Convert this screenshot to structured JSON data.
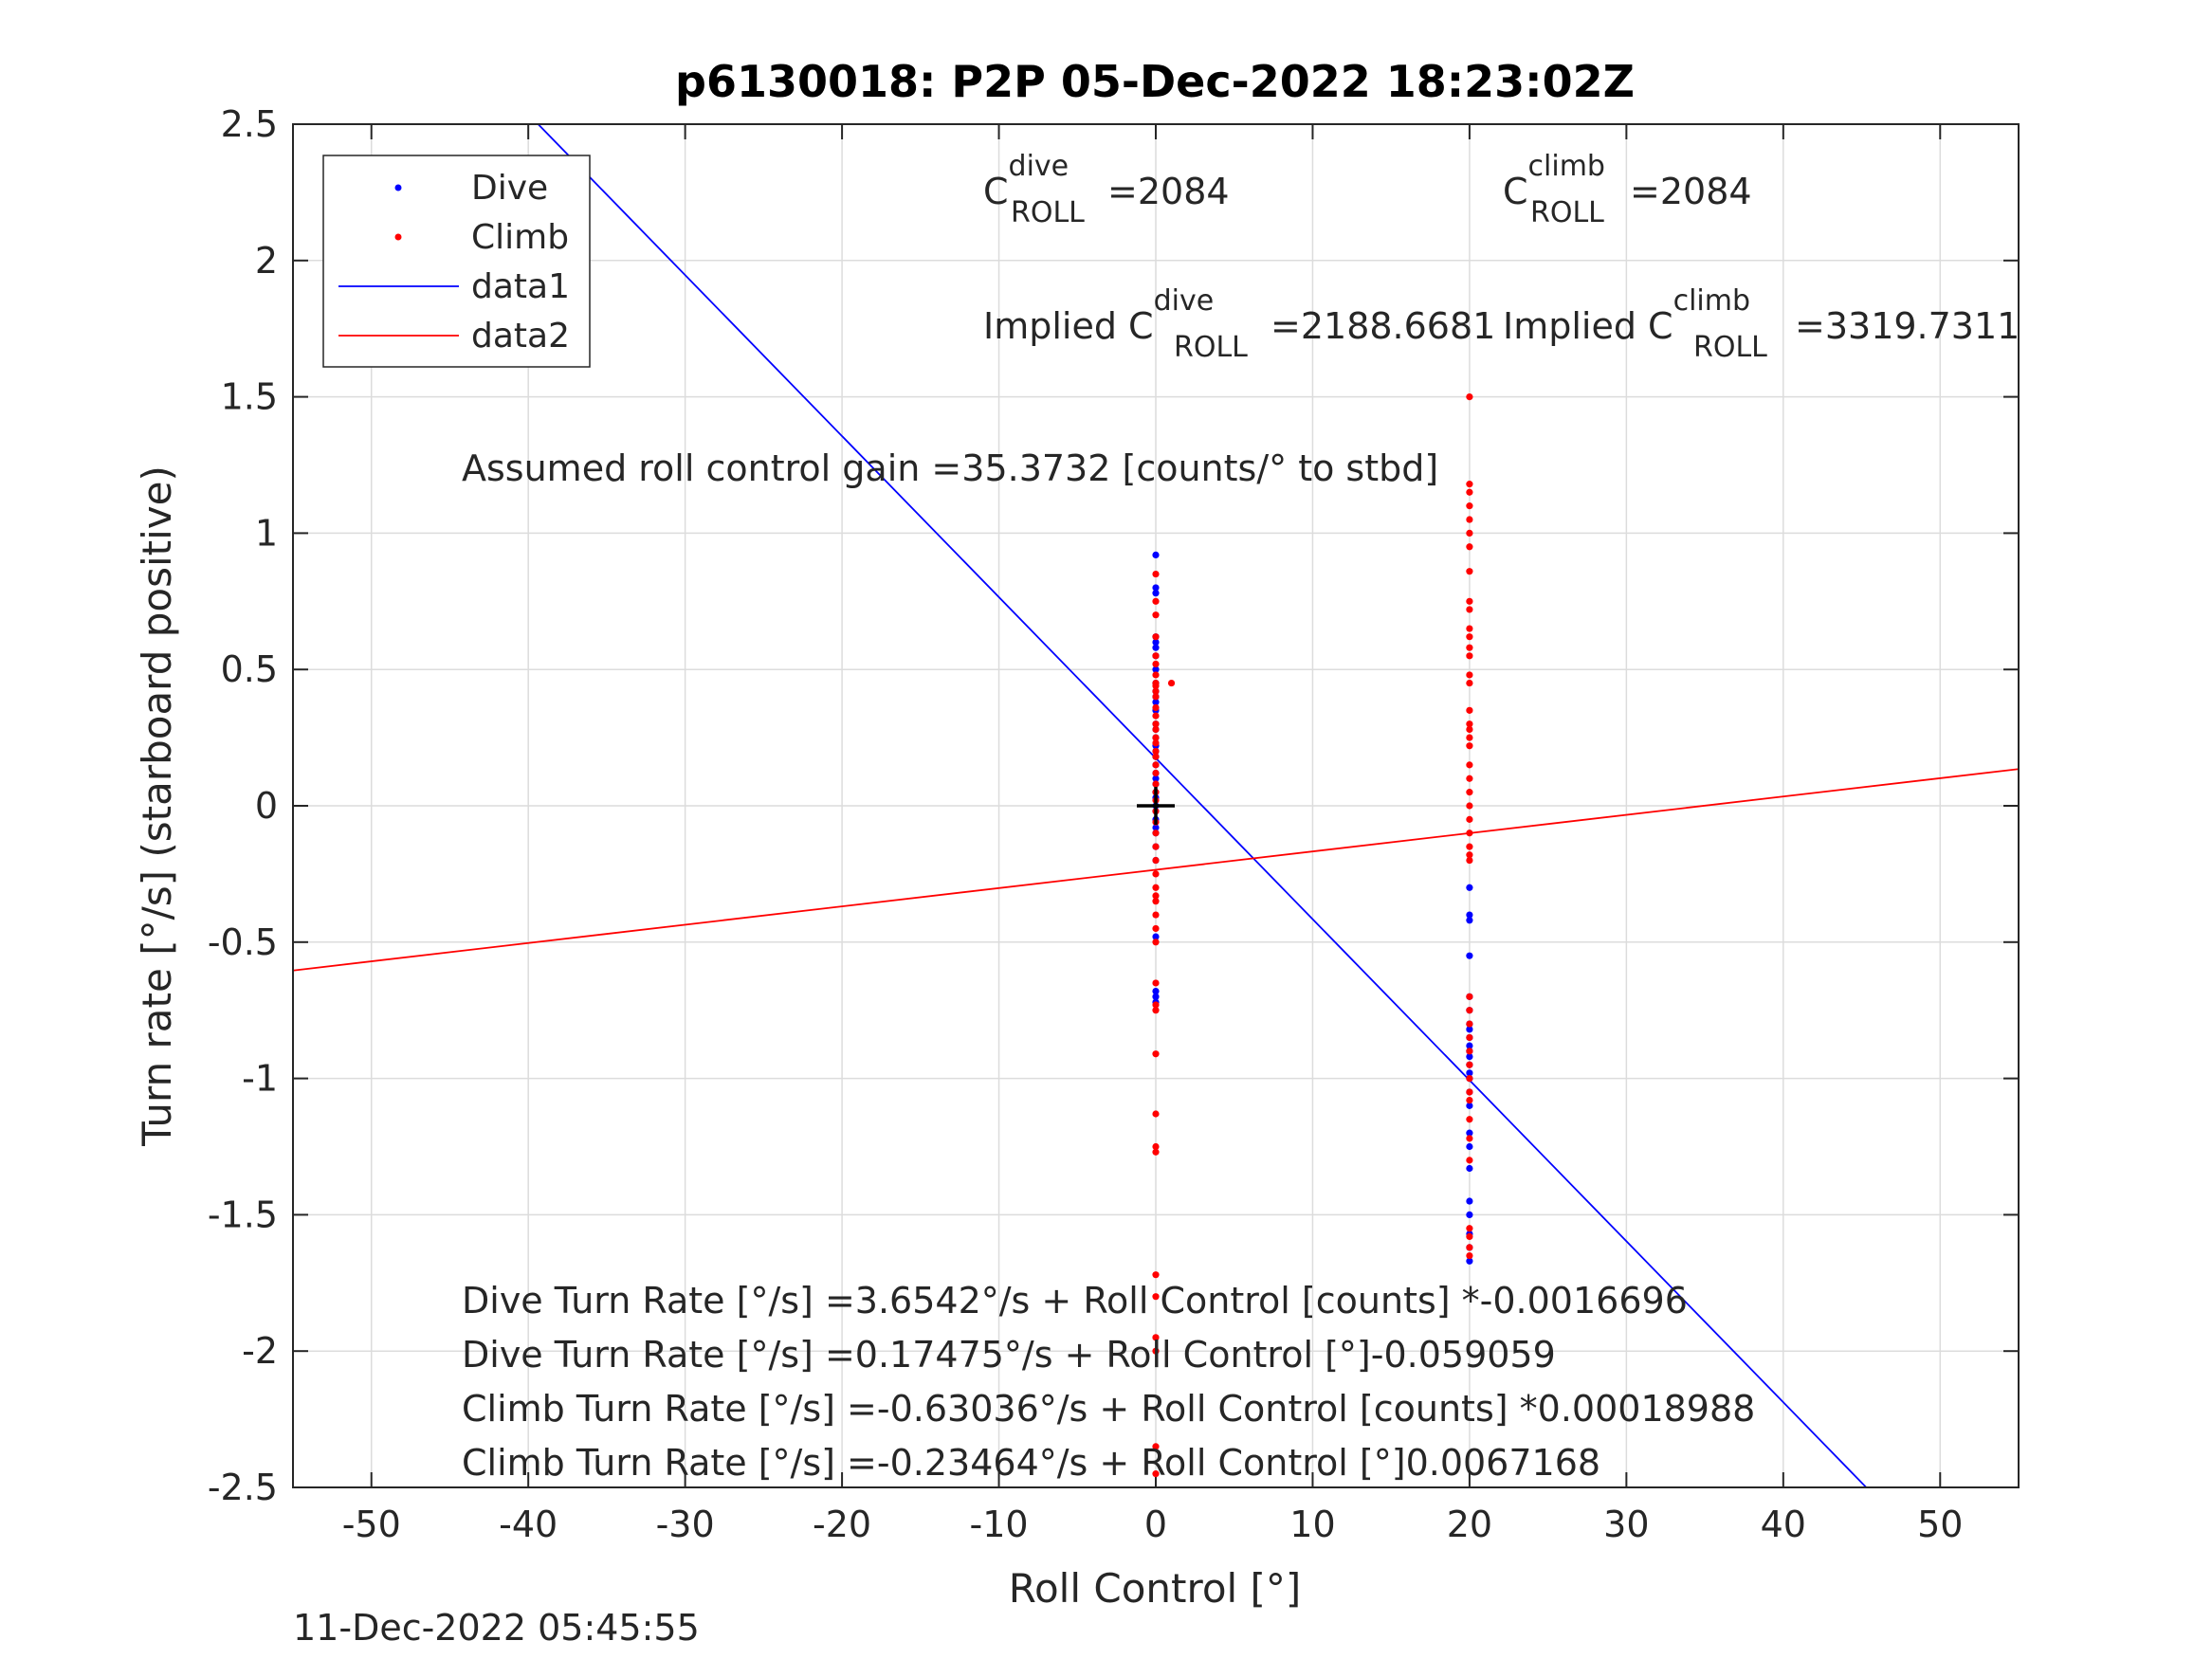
{
  "footer_timestamp": "11-Dec-2022 05:45:55",
  "chart_data": {
    "type": "scatter",
    "title": "p6130018: P2P 05-Dec-2022 18:23:02Z",
    "xlabel": "Roll Control [°]",
    "ylabel": "Turn rate [°/s] (starboard positive)",
    "xlim": [
      -55,
      55
    ],
    "ylim": [
      -2.5,
      2.5
    ],
    "xticks": [
      -50,
      -40,
      -30,
      -20,
      -10,
      0,
      10,
      20,
      30,
      40,
      50
    ],
    "yticks": [
      -2.5,
      -2,
      -1.5,
      -1,
      -0.5,
      0,
      0.5,
      1,
      1.5,
      2,
      2.5
    ],
    "xtick_labels": [
      "-50",
      "-40",
      "-30",
      "-20",
      "-10",
      "0",
      "10",
      "20",
      "30",
      "40",
      "50"
    ],
    "ytick_labels": [
      "-2.5",
      "-2",
      "-1.5",
      "-1",
      "-0.5",
      "0",
      "0.5",
      "1",
      "1.5",
      "2",
      "2.5"
    ],
    "grid": true,
    "legend_position": "top-left",
    "legend": [
      {
        "label": "Dive",
        "kind": "marker",
        "color": "#0000ff"
      },
      {
        "label": "Climb",
        "kind": "marker",
        "color": "#ff0000"
      },
      {
        "label": "data1",
        "kind": "line",
        "color": "#0000ff"
      },
      {
        "label": "data2",
        "kind": "line",
        "color": "#ff0000"
      }
    ],
    "series": [
      {
        "name": "Dive",
        "kind": "scatter",
        "color": "#0000ff",
        "points": [
          [
            0,
            0.92
          ],
          [
            0,
            0.8
          ],
          [
            0,
            0.78
          ],
          [
            0,
            0.62
          ],
          [
            0,
            0.6
          ],
          [
            0,
            0.58
          ],
          [
            0,
            0.55
          ],
          [
            0,
            0.5
          ],
          [
            0,
            0.45
          ],
          [
            0,
            0.42
          ],
          [
            0,
            0.4
          ],
          [
            0,
            0.38
          ],
          [
            0,
            0.35
          ],
          [
            0,
            0.3
          ],
          [
            0,
            0.28
          ],
          [
            0,
            0.25
          ],
          [
            0,
            0.22
          ],
          [
            0,
            0.2
          ],
          [
            0,
            0.18
          ],
          [
            0,
            0.15
          ],
          [
            0,
            0.12
          ],
          [
            0,
            0.1
          ],
          [
            0,
            0.08
          ],
          [
            0,
            0.05
          ],
          [
            0,
            0.03
          ],
          [
            0,
            0.0
          ],
          [
            0,
            -0.02
          ],
          [
            0,
            -0.05
          ],
          [
            0,
            -0.08
          ],
          [
            0,
            -0.1
          ],
          [
            0,
            -0.15
          ],
          [
            0,
            -0.2
          ],
          [
            0,
            -0.48
          ],
          [
            0,
            -0.7
          ],
          [
            0,
            -0.72
          ],
          [
            0,
            -0.68
          ],
          [
            20,
            -0.3
          ],
          [
            20,
            -0.4
          ],
          [
            20,
            -0.42
          ],
          [
            20,
            -0.55
          ],
          [
            20,
            -0.7
          ],
          [
            20,
            -0.75
          ],
          [
            20,
            -0.8
          ],
          [
            20,
            -0.82
          ],
          [
            20,
            -0.85
          ],
          [
            20,
            -0.88
          ],
          [
            20,
            -0.9
          ],
          [
            20,
            -0.92
          ],
          [
            20,
            -0.95
          ],
          [
            20,
            -0.98
          ],
          [
            20,
            -1.0
          ],
          [
            20,
            -1.05
          ],
          [
            20,
            -1.1
          ],
          [
            20,
            -1.2
          ],
          [
            20,
            -1.25
          ],
          [
            20,
            -1.33
          ],
          [
            20,
            -1.45
          ],
          [
            20,
            -1.5
          ],
          [
            20,
            -1.57
          ],
          [
            20,
            -1.62
          ],
          [
            20,
            -1.67
          ]
        ]
      },
      {
        "name": "Climb",
        "kind": "scatter",
        "color": "#ff0000",
        "points": [
          [
            0,
            0.85
          ],
          [
            0,
            0.75
          ],
          [
            0,
            0.7
          ],
          [
            0,
            0.62
          ],
          [
            0,
            0.55
          ],
          [
            0,
            0.52
          ],
          [
            0,
            0.48
          ],
          [
            0,
            0.45
          ],
          [
            0,
            0.44
          ],
          [
            0,
            0.42
          ],
          [
            0,
            0.4
          ],
          [
            0,
            0.36
          ],
          [
            0,
            0.33
          ],
          [
            0,
            0.3
          ],
          [
            0,
            0.28
          ],
          [
            0,
            0.25
          ],
          [
            0,
            0.23
          ],
          [
            0,
            0.2
          ],
          [
            0,
            0.18
          ],
          [
            0,
            0.15
          ],
          [
            0,
            0.12
          ],
          [
            0,
            0.08
          ],
          [
            0,
            0.05
          ],
          [
            0,
            0.02
          ],
          [
            0,
            -0.02
          ],
          [
            0,
            -0.06
          ],
          [
            0,
            -0.1
          ],
          [
            0,
            -0.15
          ],
          [
            0,
            -0.2
          ],
          [
            0,
            -0.25
          ],
          [
            0,
            -0.3
          ],
          [
            0,
            -0.33
          ],
          [
            0,
            -0.35
          ],
          [
            0,
            -0.4
          ],
          [
            0,
            -0.45
          ],
          [
            0,
            -0.5
          ],
          [
            0,
            -0.65
          ],
          [
            0,
            -0.73
          ],
          [
            0,
            -0.75
          ],
          [
            0,
            -0.91
          ],
          [
            0,
            -1.13
          ],
          [
            0,
            -1.25
          ],
          [
            0,
            -1.27
          ],
          [
            0,
            -1.72
          ],
          [
            0,
            -1.8
          ],
          [
            0,
            -1.95
          ],
          [
            0,
            -2.0
          ],
          [
            0,
            -2.35
          ],
          [
            0,
            -2.45
          ],
          [
            1,
            0.45
          ],
          [
            20,
            1.5
          ],
          [
            20,
            1.18
          ],
          [
            20,
            1.15
          ],
          [
            20,
            1.1
          ],
          [
            20,
            1.05
          ],
          [
            20,
            1.0
          ],
          [
            20,
            0.95
          ],
          [
            20,
            0.86
          ],
          [
            20,
            0.75
          ],
          [
            20,
            0.72
          ],
          [
            20,
            0.65
          ],
          [
            20,
            0.62
          ],
          [
            20,
            0.58
          ],
          [
            20,
            0.55
          ],
          [
            20,
            0.48
          ],
          [
            20,
            0.45
          ],
          [
            20,
            0.35
          ],
          [
            20,
            0.3
          ],
          [
            20,
            0.28
          ],
          [
            20,
            0.25
          ],
          [
            20,
            0.22
          ],
          [
            20,
            0.15
          ],
          [
            20,
            0.1
          ],
          [
            20,
            0.05
          ],
          [
            20,
            0.0
          ],
          [
            20,
            -0.05
          ],
          [
            20,
            -0.1
          ],
          [
            20,
            -0.15
          ],
          [
            20,
            -0.18
          ],
          [
            20,
            -0.2
          ],
          [
            20,
            -0.7
          ],
          [
            20,
            -0.75
          ],
          [
            20,
            -0.8
          ],
          [
            20,
            -0.85
          ],
          [
            20,
            -0.9
          ],
          [
            20,
            -0.95
          ],
          [
            20,
            -1.0
          ],
          [
            20,
            -1.05
          ],
          [
            20,
            -1.08
          ],
          [
            20,
            -1.15
          ],
          [
            20,
            -1.22
          ],
          [
            20,
            -1.3
          ],
          [
            20,
            -1.55
          ],
          [
            20,
            -1.58
          ],
          [
            20,
            -1.62
          ],
          [
            20,
            -1.65
          ]
        ]
      },
      {
        "name": "data1",
        "kind": "line",
        "color": "#0000ff",
        "intercept": 0.17475,
        "slope": -0.059059
      },
      {
        "name": "data2",
        "kind": "line",
        "color": "#ff0000",
        "intercept": -0.23464,
        "slope": 0.0067168
      }
    ],
    "marker": {
      "x": 0,
      "y": 0,
      "symbol": "+",
      "color": "#000000"
    },
    "annotations": {
      "c_dive": {
        "base": "C",
        "sup": "dive",
        "sub": "ROLL",
        "value": "=2084"
      },
      "c_climb": {
        "base": "C",
        "sup": "climb",
        "sub": "ROLL",
        "value": "=2084"
      },
      "implied_dive": {
        "base": "Implied C",
        "sup": "dive",
        "sub": "ROLL",
        "value": "=2188.6681"
      },
      "implied_climb": {
        "base": "Implied C",
        "sup": "climb",
        "sub": "ROLL",
        "value": "=3319.7311"
      },
      "gain": "Assumed roll control gain =35.3732 [counts/° to stbd]",
      "equations": [
        "Dive Turn Rate [°/s] =3.6542°/s + Roll Control [counts] *-0.0016696",
        "Dive Turn Rate [°/s] =0.17475°/s + Roll Control [°]-0.059059",
        "Climb Turn Rate [°/s] =-0.63036°/s + Roll Control [counts] *0.00018988",
        "Climb Turn Rate [°/s] =-0.23464°/s + Roll Control [°]0.0067168"
      ]
    }
  }
}
